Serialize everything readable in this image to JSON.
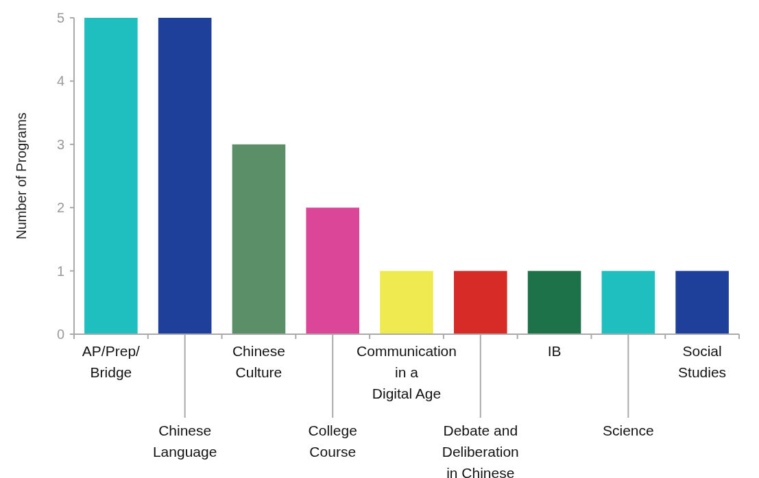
{
  "chart_data": {
    "type": "bar",
    "ylabel": "Number of Programs",
    "categories": [
      "AP/Prep/\nBridge",
      "Chinese\nLanguage",
      "Chinese\nCulture",
      "College\nCourse",
      "Communication\nin a\nDigital Age",
      "Debate and\nDeliberation\nin Chinese",
      "IB",
      "Science",
      "Social\nStudies"
    ],
    "values": [
      5,
      5,
      3,
      2,
      1,
      1,
      1,
      1,
      1
    ],
    "colors": [
      "#1fbfbf",
      "#1f409a",
      "#5b8f67",
      "#dc4698",
      "#eeea50",
      "#d62b27",
      "#1e7249",
      "#1fbfbf",
      "#1f409a"
    ],
    "ylim": [
      0,
      5
    ],
    "yticks": [
      0,
      1,
      2,
      3,
      4,
      5
    ],
    "grid": false
  }
}
